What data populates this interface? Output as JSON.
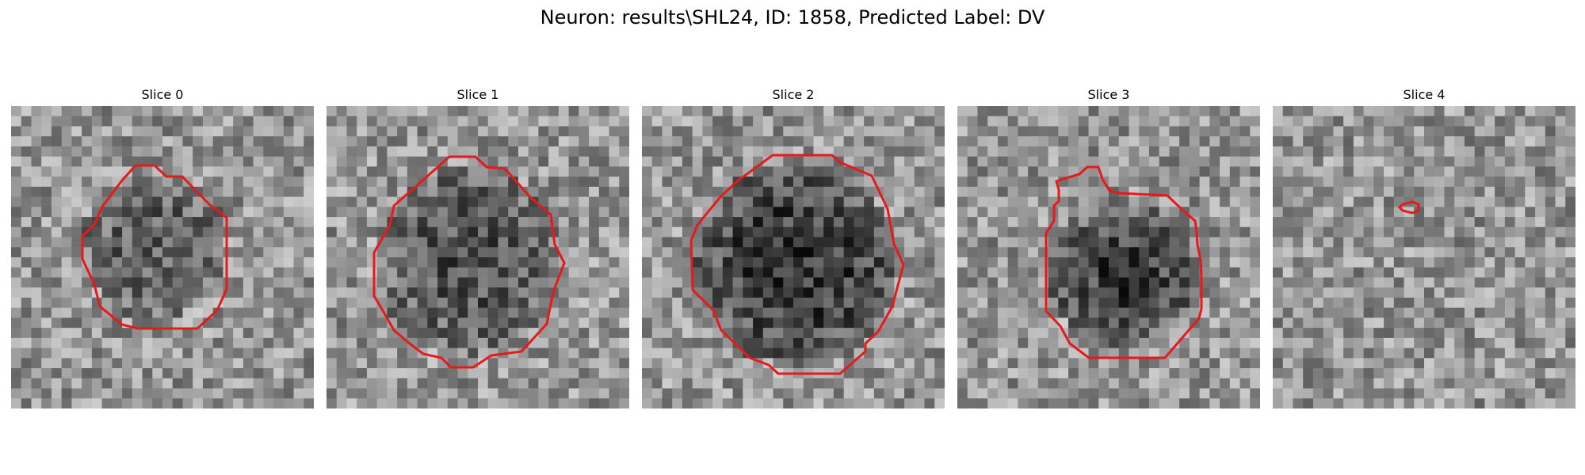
{
  "title": "Neuron: results\\SHL24, ID: 1858, Predicted Label: DV",
  "outline_color": "#e41a1c",
  "panels": [
    {
      "title": "Slice 0"
    },
    {
      "title": "Slice 1"
    },
    {
      "title": "Slice 2"
    },
    {
      "title": "Slice 3"
    },
    {
      "title": "Slice 4"
    }
  ]
}
